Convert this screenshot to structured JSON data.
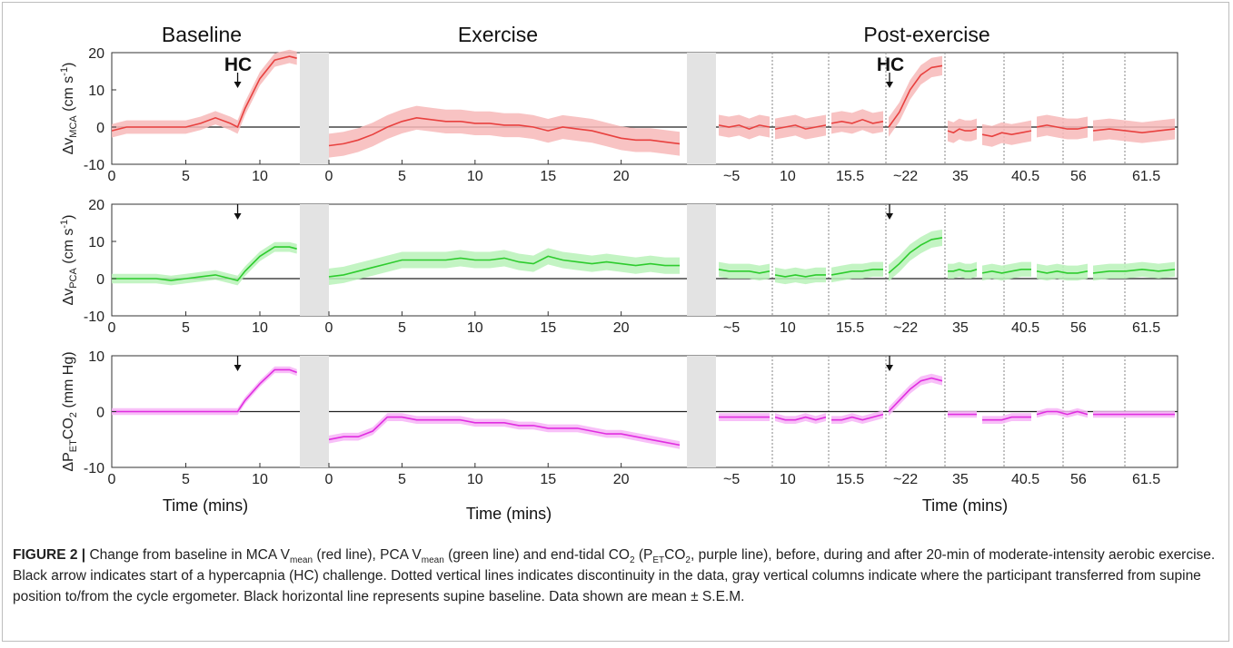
{
  "chart_data": {
    "type": "line",
    "panel_titles": [
      "Baseline",
      "Exercise",
      "Post-exercise"
    ],
    "hc_label": "HC",
    "xlabel": "Time (mins)",
    "segments": {
      "baseline": {
        "xlim": [
          0,
          12.7
        ],
        "ticks": [
          0,
          5,
          10
        ],
        "tick_labels": [
          "0",
          "5",
          "10"
        ]
      },
      "exercise": {
        "xlim": [
          0,
          24.5
        ],
        "ticks": [
          0,
          5,
          10,
          15,
          20
        ],
        "tick_labels": [
          "0",
          "5",
          "10",
          "15",
          "20"
        ]
      },
      "post_exercise": {
        "tick_labels": [
          "~5",
          "10",
          "15.5",
          "~22",
          "35",
          "40.5",
          "56",
          "61.5"
        ]
      }
    },
    "panels": [
      {
        "name": "MCA",
        "ylabel_main": "Δv",
        "ylabel_sub": "MCA",
        "ylabel_unit": "(cm s",
        "ylabel_sup": "-1",
        "ylabel_close": ")",
        "color": "#e8413f",
        "band_color": "#f7b9b8",
        "ylim": [
          -10,
          20
        ],
        "yticks": [
          "20",
          "10",
          "0",
          "-10"
        ],
        "baseline": {
          "x": [
            0,
            1,
            2,
            3,
            4,
            5,
            6,
            7,
            8,
            8.5,
            9,
            10,
            11,
            12,
            12.5
          ],
          "y": [
            -1,
            0,
            0,
            0,
            0,
            0,
            1,
            2.5,
            1,
            0,
            5,
            13,
            18,
            19,
            18.5
          ],
          "sem": 1.8
        },
        "exercise": {
          "x": [
            0,
            1,
            2,
            3,
            4,
            5,
            6,
            7,
            8,
            9,
            10,
            11,
            12,
            13,
            14,
            15,
            16,
            17,
            18,
            19,
            20,
            21,
            22,
            23,
            24
          ],
          "y": [
            -5,
            -4.5,
            -3.5,
            -2,
            0,
            1.5,
            2.5,
            2,
            1.5,
            1.5,
            1,
            1,
            0.5,
            0.5,
            0,
            -1,
            0,
            -0.5,
            -1,
            -2,
            -3,
            -3.5,
            -3.5,
            -4,
            -4.5
          ],
          "sem": 3.2
        },
        "post": [
          {
            "y": [
              0.5,
              0,
              0.5,
              -0.5,
              0.5,
              0
            ],
            "sem": 2.8
          },
          {
            "y": [
              -0.5,
              0,
              0.5,
              -0.5,
              0,
              0.5
            ],
            "sem": 2.8
          },
          {
            "y": [
              1,
              1.5,
              1,
              2,
              1,
              1.5
            ],
            "sem": 2.8
          },
          {
            "y": [
              0,
              4,
              10,
              14,
              16,
              16.5
            ],
            "sem": 2.6
          },
          {
            "y": [
              -1,
              -1.5,
              -0.5,
              -1,
              -1,
              -0.5
            ],
            "sem": 2.8
          },
          {
            "y": [
              -2,
              -2.5,
              -1.5,
              -2,
              -1.5,
              -1
            ],
            "sem": 2.8
          },
          {
            "y": [
              0,
              0.5,
              0,
              -0.5,
              -0.5,
              0
            ],
            "sem": 2.8
          },
          {
            "y": [
              -1,
              -0.5,
              -1,
              -1.5,
              -1,
              -0.5
            ],
            "sem": 2.8
          }
        ]
      },
      {
        "name": "PCA",
        "ylabel_main": "Δv",
        "ylabel_sub": "PCA",
        "ylabel_unit": "(cm s",
        "ylabel_sup": "-1",
        "ylabel_close": ")",
        "color": "#2ecc2e",
        "band_color": "#b8f2b8",
        "ylim": [
          -10,
          20
        ],
        "yticks": [
          "20",
          "10",
          "0",
          "-10"
        ],
        "baseline": {
          "x": [
            0,
            1,
            2,
            3,
            4,
            5,
            6,
            7,
            8,
            8.5,
            9,
            10,
            11,
            12,
            12.5
          ],
          "y": [
            0,
            0,
            0,
            0,
            -0.5,
            0,
            0.5,
            1,
            0,
            -0.5,
            2,
            6,
            8.5,
            8.5,
            8
          ],
          "sem": 1.3
        },
        "exercise": {
          "x": [
            0,
            1,
            2,
            3,
            4,
            5,
            6,
            7,
            8,
            9,
            10,
            11,
            12,
            13,
            14,
            15,
            16,
            17,
            18,
            19,
            20,
            21,
            22,
            23,
            24
          ],
          "y": [
            0.5,
            1,
            2,
            3,
            4,
            5,
            5,
            5,
            5,
            5.5,
            5,
            5,
            5.5,
            4.5,
            4,
            6,
            5,
            4.5,
            4,
            4.5,
            4,
            3.5,
            4,
            3.5,
            3.5
          ],
          "sem": 2.2
        },
        "post": [
          {
            "y": [
              2.5,
              2,
              2,
              2,
              1.5,
              2
            ],
            "sem": 2.0
          },
          {
            "y": [
              1,
              0.5,
              1,
              0.5,
              1,
              1
            ],
            "sem": 2.0
          },
          {
            "y": [
              1,
              1.5,
              2,
              2,
              2.5,
              2.5
            ],
            "sem": 2.0
          },
          {
            "y": [
              1.5,
              4,
              7,
              9,
              10.5,
              11
            ],
            "sem": 2.2
          },
          {
            "y": [
              2,
              2,
              2.5,
              2,
              2,
              2.5
            ],
            "sem": 2.0
          },
          {
            "y": [
              1.5,
              2,
              1.5,
              2,
              2.5,
              2.5
            ],
            "sem": 2.0
          },
          {
            "y": [
              2,
              1.5,
              2,
              1.5,
              1.5,
              2
            ],
            "sem": 2.0
          },
          {
            "y": [
              1.5,
              2,
              2,
              2.5,
              2,
              2.5
            ],
            "sem": 2.0
          }
        ]
      },
      {
        "name": "PETCO2",
        "ylabel_main": "ΔP",
        "ylabel_sub": "ET",
        "ylabel_unit": "CO",
        "ylabel_sup": "2",
        "ylabel_close": " (mm Hg)",
        "color": "#e02ee0",
        "band_color": "#f7b4f7",
        "ylim": [
          -10,
          10
        ],
        "yticks": [
          "10",
          "0",
          "-10"
        ],
        "baseline": {
          "x": [
            0,
            1,
            2,
            3,
            4,
            5,
            6,
            7,
            8,
            8.5,
            9,
            10,
            11,
            12,
            12.5
          ],
          "y": [
            0,
            0,
            0,
            0,
            0,
            0,
            0,
            0,
            0,
            0,
            2,
            5,
            7.5,
            7.5,
            7
          ],
          "sem": 0.6
        },
        "exercise": {
          "x": [
            0,
            1,
            2,
            3,
            4,
            5,
            6,
            7,
            8,
            9,
            10,
            11,
            12,
            13,
            14,
            15,
            16,
            17,
            18,
            19,
            20,
            21,
            22,
            23,
            24
          ],
          "y": [
            -5,
            -4.5,
            -4.5,
            -3.5,
            -1,
            -1,
            -1.5,
            -1.5,
            -1.5,
            -1.5,
            -2,
            -2,
            -2,
            -2.5,
            -2.5,
            -3,
            -3,
            -3,
            -3.5,
            -4,
            -4,
            -4.5,
            -5,
            -5.5,
            -6
          ],
          "sem": 0.7
        },
        "post": [
          {
            "y": [
              -1,
              -1,
              -1,
              -1,
              -1,
              -1
            ],
            "sem": 0.7
          },
          {
            "y": [
              -1,
              -1.5,
              -1.5,
              -1,
              -1.5,
              -1
            ],
            "sem": 0.7
          },
          {
            "y": [
              -1.5,
              -1.5,
              -1,
              -1.5,
              -1,
              -0.5
            ],
            "sem": 0.7
          },
          {
            "y": [
              0,
              2,
              4,
              5.5,
              6,
              5.5
            ],
            "sem": 0.8
          },
          {
            "y": [
              -0.5,
              -0.5,
              -0.5,
              -0.5,
              -0.5,
              -0.5
            ],
            "sem": 0.6
          },
          {
            "y": [
              -1.5,
              -1.5,
              -1.5,
              -1,
              -1,
              -1
            ],
            "sem": 0.7
          },
          {
            "y": [
              -0.5,
              0,
              0,
              -0.5,
              0,
              -0.5
            ],
            "sem": 0.6
          },
          {
            "y": [
              -0.5,
              -0.5,
              -0.5,
              -0.5,
              -0.5,
              -0.5
            ],
            "sem": 0.6
          }
        ]
      }
    ]
  },
  "caption": {
    "lead": "FIGURE 2 |",
    "p1": " Change from baseline in MCA V",
    "sub1": "mean",
    "p2": " (red line), PCA V",
    "sub2": "mean",
    "p3": " (green line) and end-tidal CO",
    "sub3": "2",
    "p4": " (P",
    "sub4": "ET",
    "p5": "CO",
    "sub5": "2",
    "p6": ", purple line), before, during and after 20-min of moderate-intensity aerobic exercise. Black arrow indicates start of a hypercapnia (HC) challenge. Dotted vertical lines indicates discontinuity in the data, gray vertical columns indicate where the participant transferred from supine position to/from the cycle ergometer. Black horizontal line represents supine baseline. Data shown are mean ± S.E.M."
  }
}
